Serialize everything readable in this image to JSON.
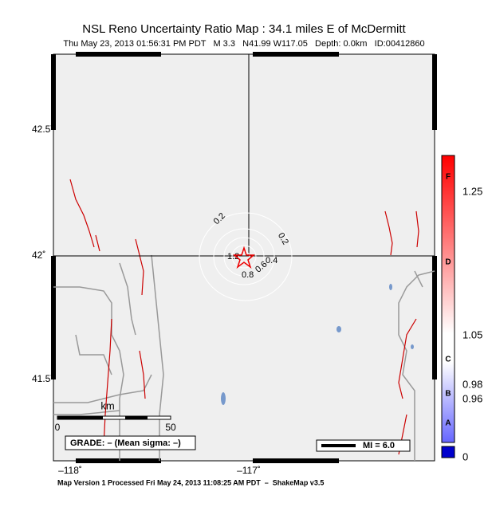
{
  "header": {
    "title": "NSL Reno Uncertainty Ratio Map : 34.1 miles E of McDermitt",
    "subtitle": "Thu May 23, 2013 01:56:31 PM PDT   M 3.3   N41.99 W117.05   Depth: 0.0km   ID:00412860"
  },
  "map": {
    "lat_labels": [
      "42.5˚",
      "42˚",
      "41.5˚"
    ],
    "lon_labels": [
      "–118˚",
      "–117˚"
    ],
    "contour_labels": [
      "0.2",
      "0.2",
      "0.4",
      "0.6",
      "0.8",
      "1.2"
    ],
    "scale": {
      "unit": "km",
      "start": "0",
      "end": "50"
    },
    "grade": "GRADE: – (Mean sigma: –)",
    "legend": "MI = 6.0"
  },
  "colorbar": {
    "letters": [
      "F",
      "D",
      "C",
      "B",
      "A"
    ],
    "ticks": [
      "1.25",
      "1.05",
      "0.98",
      "0.96",
      "0"
    ]
  },
  "footer": "Map Version 1 Processed Fri May 24, 2013 11:08:25 AM PDT  –  ShakeMap v3.5"
}
